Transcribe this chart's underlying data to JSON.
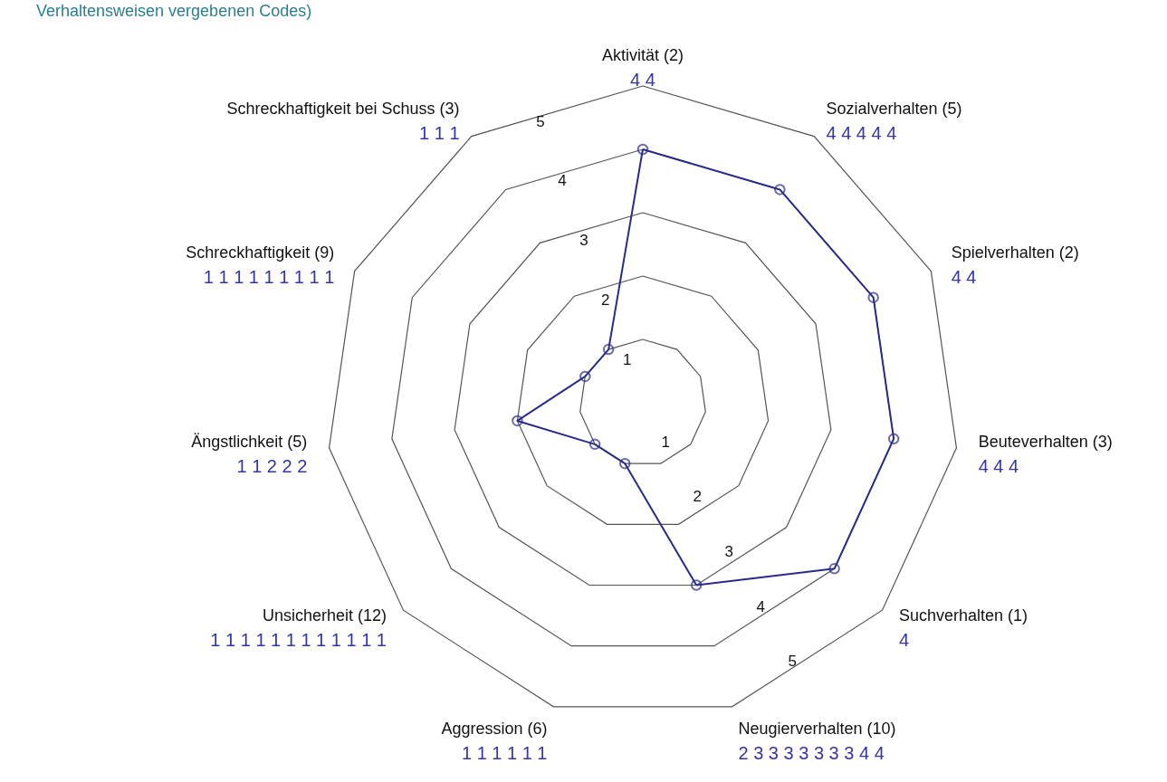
{
  "chart_data": {
    "type": "radar",
    "title": "Verhaltensweisen vergebenen Codes)",
    "categories": [
      "Aktivität (2)",
      "Sozialverhalten (5)",
      "Spielverhalten (2)",
      "Beuteverhalten (3)",
      "Suchverhalten (1)",
      "Neugierverhalten (10)",
      "Aggression (6)",
      "Unsicherheit (12)",
      "Ängstlichkeit (5)",
      "Schreckhaftigkeit (9)",
      "Schreckhaftigkeit bei Schuss (3)"
    ],
    "series": [
      {
        "color": "#2b2b8a",
        "values": [
          4,
          4,
          4,
          4,
          4,
          3,
          1,
          1,
          2,
          1,
          1
        ]
      }
    ],
    "ylim": [
      0,
      5
    ],
    "yticks": [
      1,
      2,
      3,
      4,
      5
    ],
    "marker": "circle",
    "line_style": "solid",
    "annotations": [
      "4 4",
      "4 4 4 4 4",
      "4 4",
      "4 4 4",
      "4",
      "2 3 3 3 3 3 3 3 4 4",
      "1 1 1 1 1 1",
      "1 1 1 1 1 1 1 1 1 1 1 1",
      "1 1 2 2 2",
      "1 1 1 1 1 1 1 1 1",
      "1 1 1",
      "1",
      "2",
      "3",
      "4",
      "5"
    ]
  }
}
